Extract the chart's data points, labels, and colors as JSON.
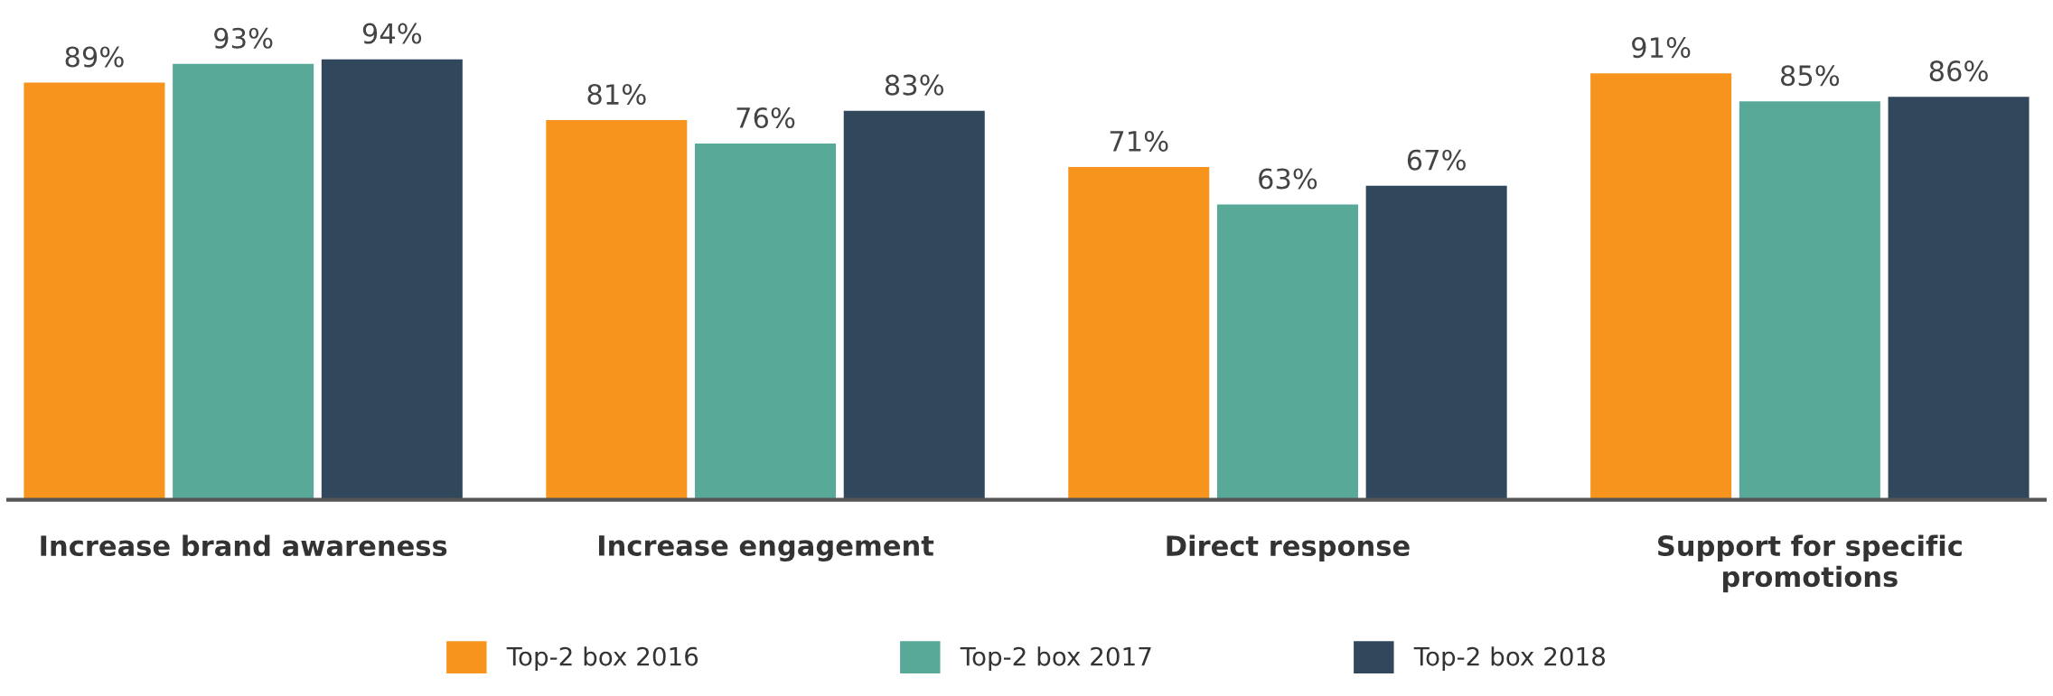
{
  "chart_data": {
    "type": "bar",
    "categories": [
      "Increase brand awareness",
      "Increase engagement",
      "Direct response",
      "Support for specific\npromotions"
    ],
    "series": [
      {
        "name": "Top-2 box 2016",
        "color": "#f7941d",
        "values": [
          89,
          81,
          71,
          91
        ],
        "value_labels": [
          "89%",
          "81%",
          "71%",
          "91%"
        ]
      },
      {
        "name": "Top-2 box 2017",
        "color": "#59a999",
        "values": [
          93,
          76,
          63,
          85
        ],
        "value_labels": [
          "93%",
          "76%",
          "63%",
          "85%"
        ]
      },
      {
        "name": "Top-2 box 2018",
        "color": "#31485c",
        "values": [
          94,
          83,
          67,
          86
        ],
        "value_labels": [
          "94%",
          "83%",
          "67%",
          "86%"
        ]
      }
    ],
    "tick_labels": "x",
    "legend": "bottom"
  }
}
